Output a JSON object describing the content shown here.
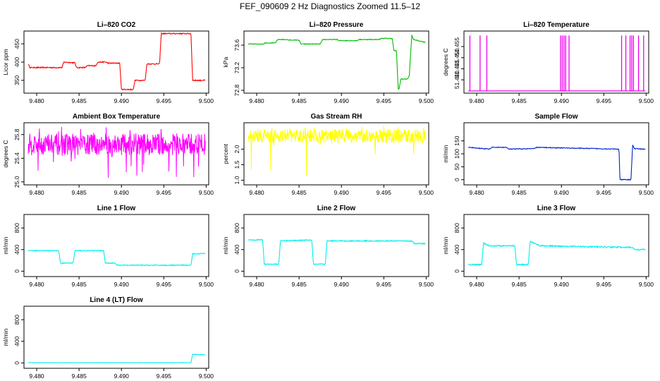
{
  "page": {
    "title": "FEF_090609  2 Hz Diagnostics Zoomed 11.5–12"
  },
  "chart_data": [
    {
      "type": "line",
      "title": "Li–820 CO2",
      "ylabel": "Licor ppm",
      "color": "#ff0000",
      "xlim": [
        9.4785,
        9.5003
      ],
      "ylim": [
        315,
        485
      ],
      "xticks": [
        9.48,
        9.485,
        9.49,
        9.495,
        9.5
      ],
      "xtick_labels": [
        "9.480",
        "9.485",
        "9.490",
        "9.495",
        "9.500"
      ],
      "yticks": [
        350,
        400,
        450
      ],
      "ytick_labels": [
        "350",
        "400",
        "450"
      ],
      "noise": 1.5,
      "x": [
        9.479,
        9.4792,
        9.481,
        9.483,
        9.4832,
        9.4845,
        9.4847,
        9.4857,
        9.486,
        9.487,
        9.4872,
        9.4882,
        9.4884,
        9.4898,
        9.49,
        9.4914,
        9.4916,
        9.4928,
        9.493,
        9.4945,
        9.4947,
        9.4982,
        9.4984,
        9.4999
      ],
      "y": [
        395,
        385,
        385,
        385,
        400,
        398,
        385,
        385,
        390,
        390,
        400,
        400,
        397,
        397,
        325,
        325,
        350,
        350,
        395,
        395,
        478,
        478,
        350,
        350
      ]
    },
    {
      "type": "line",
      "title": "Li–820 Pressure",
      "ylabel": "kPa",
      "color": "#00bb00",
      "xlim": [
        9.4785,
        9.5003
      ],
      "ylim": [
        72.75,
        73.85
      ],
      "xticks": [
        9.48,
        9.485,
        9.49,
        9.495,
        9.5
      ],
      "xtick_labels": [
        "9.480",
        "9.485",
        "9.490",
        "9.495",
        "9.500"
      ],
      "yticks": [
        72.8,
        73.2,
        73.6
      ],
      "ytick_labels": [
        "72.8",
        "73.2",
        "73.6"
      ],
      "noise": 0.006,
      "x": [
        9.479,
        9.4808,
        9.481,
        9.4822,
        9.4825,
        9.4835,
        9.4838,
        9.485,
        9.4852,
        9.4875,
        9.4878,
        9.4895,
        9.4897,
        9.4918,
        9.4921,
        9.4945,
        9.4947,
        9.496,
        9.4962,
        9.4965,
        9.4967,
        9.4968,
        9.497,
        9.4978,
        9.498,
        9.4983,
        9.4985,
        9.4999
      ],
      "y": [
        73.62,
        73.62,
        73.64,
        73.64,
        73.7,
        73.7,
        73.69,
        73.69,
        73.62,
        73.62,
        73.7,
        73.7,
        73.68,
        73.68,
        73.7,
        73.7,
        73.72,
        73.72,
        73.5,
        73.5,
        72.82,
        72.82,
        73.0,
        73.0,
        73.05,
        73.78,
        73.7,
        73.65
      ]
    },
    {
      "type": "line",
      "title": "Li–820 Temperature",
      "ylabel": "degrees C",
      "color": "#ee00ee",
      "xlim": [
        9.4785,
        9.5003
      ],
      "ylim": [
        51.434,
        51.462
      ],
      "xticks": [
        9.48,
        9.485,
        9.49,
        9.495,
        9.5
      ],
      "xtick_labels": [
        "9.480",
        "9.485",
        "9.490",
        "9.495",
        "9.500"
      ],
      "yticks": [
        51.44,
        51.445,
        51.45,
        51.455
      ],
      "ytick_labels": [
        "51.440",
        "51.445",
        "51.450",
        "51.455"
      ],
      "noise": 0,
      "baseline": 51.435,
      "spikes": [
        9.4792,
        9.4804,
        9.4812,
        9.4899,
        9.4901,
        9.4903,
        9.4905,
        9.4909,
        9.4971,
        9.4976,
        9.4981,
        9.4983,
        9.4985,
        9.4991,
        9.4997
      ],
      "spike_top": 51.46
    },
    {
      "type": "line",
      "title": "Ambient Box Temperature",
      "ylabel": "degrees C",
      "color": "#ff00ff",
      "xlim": [
        9.4785,
        9.5003
      ],
      "ylim": [
        24.95,
        26.0
      ],
      "xticks": [
        9.48,
        9.485,
        9.49,
        9.495,
        9.5
      ],
      "xtick_labels": [
        "9.480",
        "9.485",
        "9.490",
        "9.495",
        "9.500"
      ],
      "yticks": [
        25.0,
        25.4,
        25.8
      ],
      "ytick_labels": [
        "25.0",
        "25.4",
        "25.8"
      ],
      "band": [
        25.45,
        25.82
      ],
      "band_spikes_low": 25.05,
      "band_spikes_high": 25.95
    },
    {
      "type": "line",
      "title": "Gas Stream RH",
      "ylabel": "percent",
      "color": "#ffff00",
      "xlim": [
        9.4785,
        9.5003
      ],
      "ylim": [
        0.85,
        2.85
      ],
      "xticks": [
        9.48,
        9.485,
        9.49,
        9.495,
        9.5
      ],
      "xtick_labels": [
        "9.480",
        "9.485",
        "9.490",
        "9.495",
        "9.500"
      ],
      "yticks": [
        1.0,
        1.5,
        2.0
      ],
      "ytick_labels": [
        "1.0",
        "1.5",
        "2.0"
      ],
      "band": [
        2.2,
        2.65
      ],
      "band_spikes_low": 1.05,
      "band_spikes_high": 2.78
    },
    {
      "type": "line",
      "title": "Sample Flow",
      "ylabel": "ml/min",
      "color": "#0022cc",
      "xlim": [
        9.4785,
        9.5003
      ],
      "ylim": [
        -20,
        220
      ],
      "xticks": [
        9.48,
        9.485,
        9.49,
        9.495,
        9.5
      ],
      "xtick_labels": [
        "9.480",
        "9.485",
        "9.490",
        "9.495",
        "9.500"
      ],
      "yticks": [
        0,
        50,
        100,
        150
      ],
      "ytick_labels": [
        "0",
        "50",
        "100",
        "150"
      ],
      "noise": 1.5,
      "x": [
        9.479,
        9.4815,
        9.4818,
        9.4835,
        9.4838,
        9.4868,
        9.4871,
        9.4968,
        9.4969,
        9.4982,
        9.4984,
        9.4986,
        9.4999
      ],
      "y": [
        125,
        118,
        125,
        125,
        118,
        120,
        125,
        118,
        0,
        0,
        135,
        120,
        118
      ]
    },
    {
      "type": "line",
      "title": "Line 1 Flow",
      "ylabel": "ml/min",
      "color": "#00eeee",
      "xlim": [
        9.4785,
        9.5003
      ],
      "ylim": [
        -100,
        1050
      ],
      "xticks": [
        9.48,
        9.485,
        9.49,
        9.495,
        9.5
      ],
      "xtick_labels": [
        "9.480",
        "9.485",
        "9.490",
        "9.495",
        "9.500"
      ],
      "yticks": [
        0,
        400,
        800
      ],
      "ytick_labels": [
        "0",
        "400",
        "800"
      ],
      "noise": 8,
      "x": [
        9.479,
        9.4826,
        9.4828,
        9.4843,
        9.4845,
        9.4879,
        9.4881,
        9.4892,
        9.4895,
        9.4982,
        9.4984,
        9.4999
      ],
      "y": [
        380,
        380,
        150,
        150,
        380,
        380,
        150,
        150,
        110,
        110,
        320,
        330
      ]
    },
    {
      "type": "line",
      "title": "Line 2 Flow",
      "ylabel": "ml/min",
      "color": "#00eeee",
      "xlim": [
        9.4785,
        9.5003
      ],
      "ylim": [
        -100,
        1050
      ],
      "xticks": [
        9.48,
        9.485,
        9.49,
        9.495,
        9.5
      ],
      "xtick_labels": [
        "9.480",
        "9.485",
        "9.490",
        "9.495",
        "9.500"
      ],
      "yticks": [
        0,
        400,
        800
      ],
      "ytick_labels": [
        "0",
        "400",
        "800"
      ],
      "noise": 10,
      "x": [
        9.479,
        9.4807,
        9.4809,
        9.4826,
        9.4828,
        9.4865,
        9.4867,
        9.4881,
        9.4883,
        9.4984,
        9.4986,
        9.4999
      ],
      "y": [
        580,
        580,
        130,
        130,
        560,
        580,
        130,
        130,
        560,
        560,
        510,
        510
      ]
    },
    {
      "type": "line",
      "title": "Line 3 Flow",
      "ylabel": "ml/min",
      "color": "#00eeee",
      "xlim": [
        9.4785,
        9.5003
      ],
      "ylim": [
        -100,
        1050
      ],
      "xticks": [
        9.48,
        9.485,
        9.49,
        9.495,
        9.5
      ],
      "xtick_labels": [
        "9.480",
        "9.485",
        "9.490",
        "9.495",
        "9.500"
      ],
      "yticks": [
        0,
        400,
        800
      ],
      "ytick_labels": [
        "0",
        "400",
        "800"
      ],
      "noise": 12,
      "x": [
        9.479,
        9.4806,
        9.4808,
        9.4815,
        9.4845,
        9.4847,
        9.4861,
        9.4863,
        9.4875,
        9.4984,
        9.4986,
        9.4999
      ],
      "y": [
        120,
        120,
        520,
        470,
        470,
        120,
        120,
        550,
        470,
        440,
        400,
        400
      ]
    },
    {
      "type": "line",
      "title": "Line 4 (LT) Flow",
      "ylabel": "ml/min",
      "color": "#00eeee",
      "xlim": [
        9.4785,
        9.5003
      ],
      "ylim": [
        -100,
        1050
      ],
      "xticks": [
        9.48,
        9.485,
        9.49,
        9.495,
        9.5
      ],
      "xtick_labels": [
        "9.480",
        "9.485",
        "9.490",
        "9.495",
        "9.500"
      ],
      "yticks": [
        0,
        400,
        800
      ],
      "ytick_labels": [
        "0",
        "400",
        "800"
      ],
      "noise": 3,
      "x": [
        9.479,
        9.4982,
        9.4984,
        9.4999
      ],
      "y": [
        5,
        5,
        160,
        150
      ]
    }
  ]
}
